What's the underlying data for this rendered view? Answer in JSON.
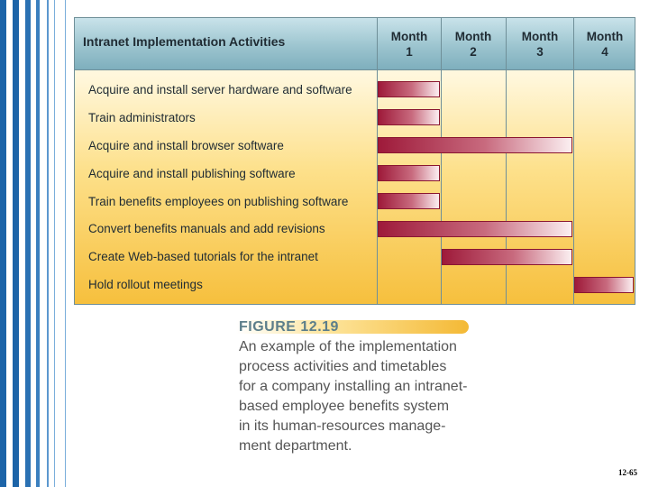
{
  "chart_data": {
    "type": "gantt",
    "title": "Intranet Implementation Activities",
    "months": [
      "Month 1",
      "Month 2",
      "Month 3",
      "Month 4"
    ],
    "month_labels": [
      {
        "line1": "Month",
        "line2": "1"
      },
      {
        "line1": "Month",
        "line2": "2"
      },
      {
        "line1": "Month",
        "line2": "3"
      },
      {
        "line1": "Month",
        "line2": "4"
      }
    ],
    "tasks": [
      {
        "name": "Acquire and install server hardware and software",
        "start_month": 1,
        "end_month": 1
      },
      {
        "name": "Train administrators",
        "start_month": 1,
        "end_month": 1
      },
      {
        "name": "Acquire and install browser software",
        "start_month": 1,
        "end_month": 3
      },
      {
        "name": "Acquire and install publishing software",
        "start_month": 1,
        "end_month": 1
      },
      {
        "name": "Train benefits employees on publishing software",
        "start_month": 1,
        "end_month": 1
      },
      {
        "name": "Convert benefits manuals and add revisions",
        "start_month": 1,
        "end_month": 3
      },
      {
        "name": "Create Web-based tutorials for the intranet",
        "start_month": 2,
        "end_month": 3
      },
      {
        "name": "Hold rollout meetings",
        "start_month": 4,
        "end_month": 4
      }
    ]
  },
  "caption": {
    "figure_label": "FIGURE 12.19",
    "lines": [
      "An example of the implementation",
      "process activities and timetables",
      "for a company installing an intranet-",
      "based employee benefits system",
      "in its human-resources manage-",
      "ment department."
    ]
  },
  "page_number": "12-65",
  "colors": {
    "header": "#9cc4cf",
    "bar_dark": "#9e1a3a",
    "body_bottom": "#f6bf3c",
    "stripe_blue": "#1c64a8"
  }
}
